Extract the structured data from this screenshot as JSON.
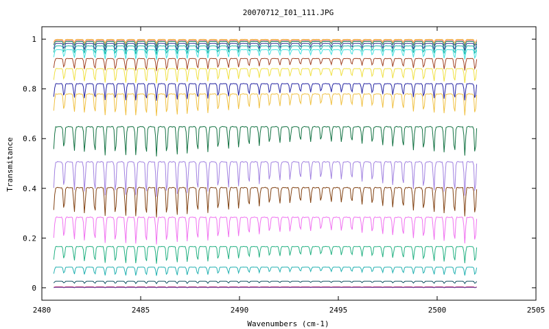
{
  "chart_data": {
    "type": "line",
    "title": "20070712_I01_111.JPG",
    "xlabel": "Wavenumbers (cm-1)",
    "ylabel": "Transmitance",
    "xlim": [
      2480,
      2505
    ],
    "ylim": [
      -0.05,
      1.05
    ],
    "x_ticks": [
      2480,
      2485,
      2490,
      2495,
      2500,
      2505
    ],
    "y_ticks": [
      0,
      0.2,
      0.4,
      0.6,
      0.8,
      1
    ],
    "x_tick_labels": [
      "2480",
      "2485",
      "2490",
      "2495",
      "2500",
      "2505"
    ],
    "y_tick_labels": [
      "0",
      "0.2",
      "0.4",
      "0.6",
      "0.8",
      "1"
    ],
    "grid": false,
    "legend": "none",
    "x_range_of_data": [
      2480.6,
      2502.0
    ],
    "line_spacing_cm1": 0.52,
    "series": [
      {
        "color": "#f7a15a",
        "baseline": 1.0,
        "depth": 0.015
      },
      {
        "color": "#f0d050",
        "baseline": 0.998,
        "depth": 0.02
      },
      {
        "color": "#e070c0",
        "baseline": 0.995,
        "depth": 0.02
      },
      {
        "color": "#20a060",
        "baseline": 0.992,
        "depth": 0.02
      },
      {
        "color": "#303090",
        "baseline": 0.985,
        "depth": 0.03
      },
      {
        "color": "#10b0a0",
        "baseline": 0.975,
        "depth": 0.035
      },
      {
        "color": "#40e0e0",
        "baseline": 0.96,
        "depth": 0.04
      },
      {
        "color": "#a04020",
        "baseline": 0.925,
        "depth": 0.05
      },
      {
        "color": "#f0e040",
        "baseline": 0.885,
        "depth": 0.06
      },
      {
        "color": "#2020a0",
        "baseline": 0.825,
        "depth": 0.07
      },
      {
        "color": "#f0c040",
        "baseline": 0.785,
        "depth": 0.09
      },
      {
        "color": "#107040",
        "baseline": 0.655,
        "depth": 0.12
      },
      {
        "color": "#a080e0",
        "baseline": 0.515,
        "depth": 0.14
      },
      {
        "color": "#804010",
        "baseline": 0.41,
        "depth": 0.12
      },
      {
        "color": "#f070f0",
        "baseline": 0.29,
        "depth": 0.11
      },
      {
        "color": "#20b080",
        "baseline": 0.17,
        "depth": 0.07
      },
      {
        "color": "#20b0b0",
        "baseline": 0.085,
        "depth": 0.035
      },
      {
        "color": "#105060",
        "baseline": 0.027,
        "depth": 0.01
      },
      {
        "color": "#c02060",
        "baseline": 0.004,
        "depth": 0.003
      },
      {
        "color": "#6040a0",
        "baseline": 0.002,
        "depth": 0.002
      }
    ]
  }
}
